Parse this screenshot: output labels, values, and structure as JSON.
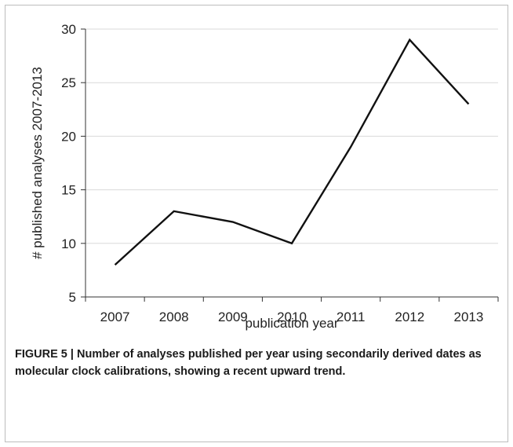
{
  "chart_data": {
    "type": "line",
    "title": "",
    "xlabel": "publication year",
    "ylabel": "# published analyses 2007-2013",
    "categories": [
      "2007",
      "2008",
      "2009",
      "2010",
      "2011",
      "2012",
      "2013"
    ],
    "values": [
      8,
      13,
      12,
      10,
      19,
      29,
      23
    ],
    "yticks": [
      "5",
      "10",
      "15",
      "20",
      "25",
      "30"
    ],
    "ylim": [
      5,
      30
    ],
    "grid": true,
    "line_color": "#111111",
    "grid_color": "#d9d9d9"
  },
  "caption": "FIGURE 5 | Number of analyses published per year using secondarily derived dates as molecular clock calibrations, showing a recent upward trend."
}
